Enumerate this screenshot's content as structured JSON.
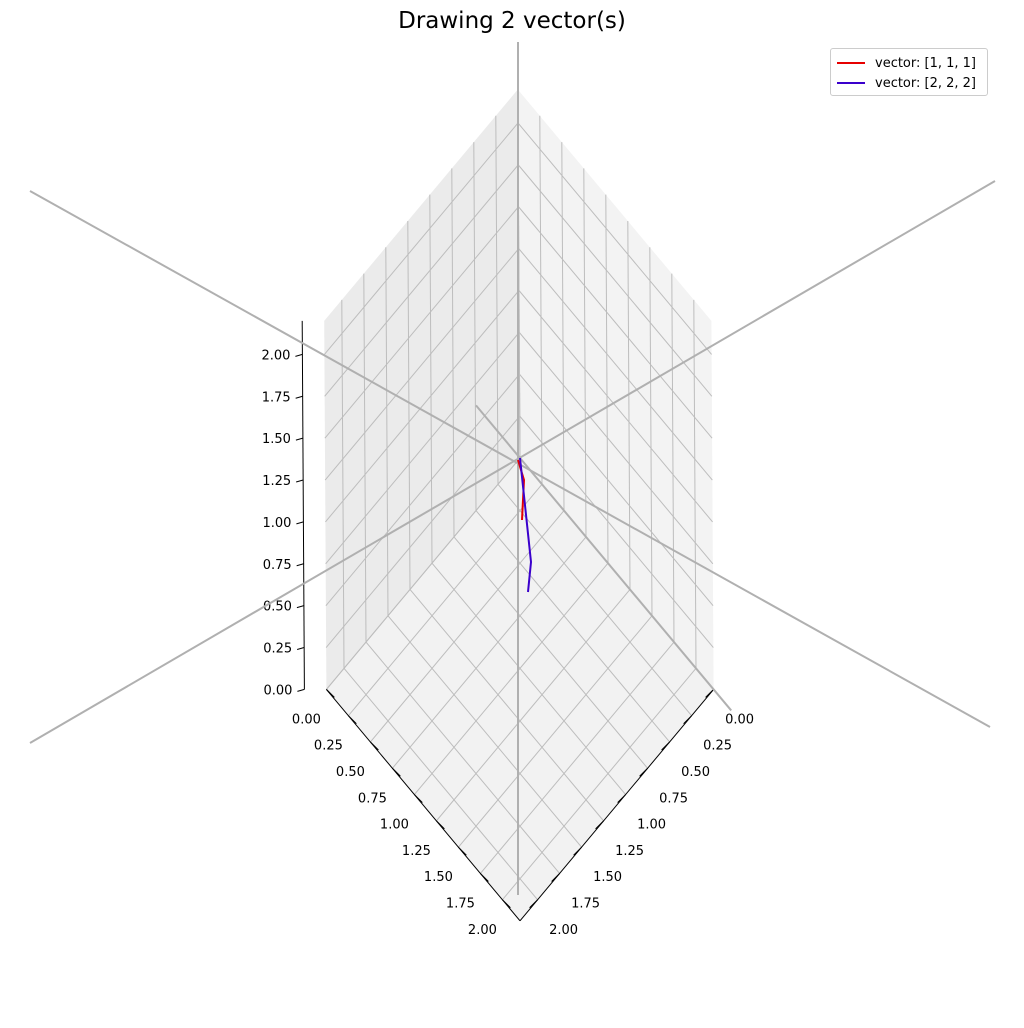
{
  "chart_data": {
    "type": "line",
    "title": "Drawing 2 vector(s)",
    "projection": "3d",
    "view": {
      "elevation": 30,
      "azimuth": 45
    },
    "xlim": [
      0,
      2.2
    ],
    "ylim": [
      0,
      2.2
    ],
    "zlim": [
      0,
      2.2
    ],
    "ticks": {
      "x": [
        "0.00",
        "0.25",
        "0.50",
        "0.75",
        "1.00",
        "1.25",
        "1.50",
        "1.75",
        "2.00"
      ],
      "y": [
        "0.00",
        "0.25",
        "0.50",
        "0.75",
        "1.00",
        "1.25",
        "1.50",
        "1.75",
        "2.00"
      ],
      "z": [
        "0.00",
        "0.25",
        "0.50",
        "0.75",
        "1.00",
        "1.25",
        "1.50",
        "1.75",
        "2.00"
      ]
    },
    "grid": true,
    "legend_position": "top-right",
    "series": [
      {
        "name": "vector: [1, 1, 1]",
        "color": "#e60000",
        "vector": [
          1,
          1,
          1
        ]
      },
      {
        "name": "vector: [2, 2, 2]",
        "color": "#3a00cc",
        "vector": [
          2,
          2,
          2
        ]
      }
    ]
  }
}
